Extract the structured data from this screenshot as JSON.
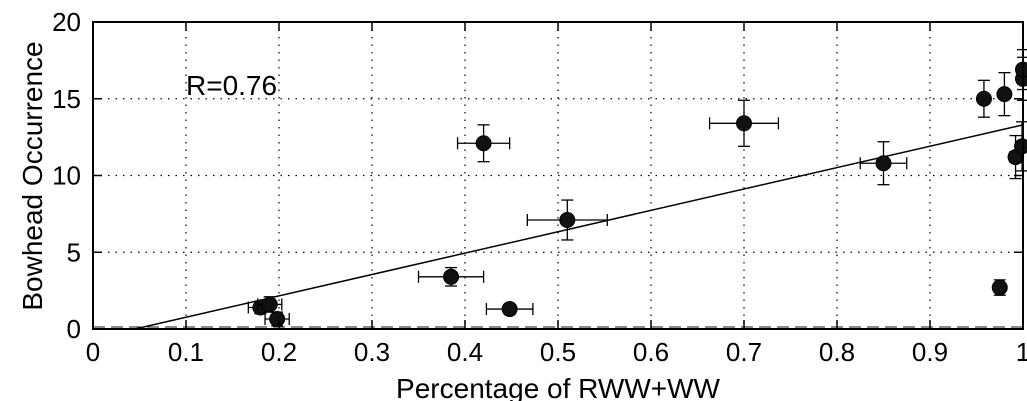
{
  "chart_data": {
    "type": "scatter",
    "xlabel": "Percentage of RWW+WW",
    "ylabel": "Bowhead Occurrence",
    "xlim": [
      0,
      1
    ],
    "ylim": [
      0,
      20
    ],
    "xticks": [
      "0",
      "0.1",
      "0.2",
      "0.3",
      "0.4",
      "0.5",
      "0.6",
      "0.7",
      "0.8",
      "0.9",
      "1"
    ],
    "yticks": [
      "0",
      "5",
      "10",
      "15",
      "20"
    ],
    "grid": true,
    "annotation": "R=0.76",
    "regression_line": {
      "x": [
        0.045,
        1.0
      ],
      "y": [
        0.0,
        13.3
      ]
    },
    "points": [
      {
        "x": 0.18,
        "y": 1.4,
        "xerr": 0.013,
        "yerr": 0.4
      },
      {
        "x": 0.19,
        "y": 1.6,
        "xerr": 0.013,
        "yerr": 0.5
      },
      {
        "x": 0.198,
        "y": 0.65,
        "xerr": 0.013,
        "yerr": 0.45
      },
      {
        "x": 0.385,
        "y": 3.4,
        "xerr": 0.035,
        "yerr": 0.6
      },
      {
        "x": 0.42,
        "y": 12.1,
        "xerr": 0.028,
        "yerr": 1.2
      },
      {
        "x": 0.448,
        "y": 1.3,
        "xerr": 0.025,
        "yerr": 0.3
      },
      {
        "x": 0.51,
        "y": 7.1,
        "xerr": 0.043,
        "yerr": 1.3
      },
      {
        "x": 0.7,
        "y": 13.4,
        "xerr": 0.037,
        "yerr": 1.5
      },
      {
        "x": 0.85,
        "y": 10.8,
        "xerr": 0.025,
        "yerr": 1.4
      },
      {
        "x": 0.958,
        "y": 15.0,
        "xerr": 0.005,
        "yerr": 1.2
      },
      {
        "x": 0.975,
        "y": 2.7,
        "xerr": 0.003,
        "yerr": 0.5
      },
      {
        "x": 0.98,
        "y": 15.3,
        "xerr": 0.003,
        "yerr": 1.4
      },
      {
        "x": 0.992,
        "y": 11.2,
        "xerr": 0.006,
        "yerr": 1.4
      },
      {
        "x": 0.999,
        "y": 11.9,
        "xerr": 0.004,
        "yerr": 1.6
      },
      {
        "x": 1.0,
        "y": 16.3,
        "xerr": 0.003,
        "yerr": 1.4
      },
      {
        "x": 1.0,
        "y": 16.9,
        "xerr": 0.003,
        "yerr": 1.3
      }
    ]
  }
}
